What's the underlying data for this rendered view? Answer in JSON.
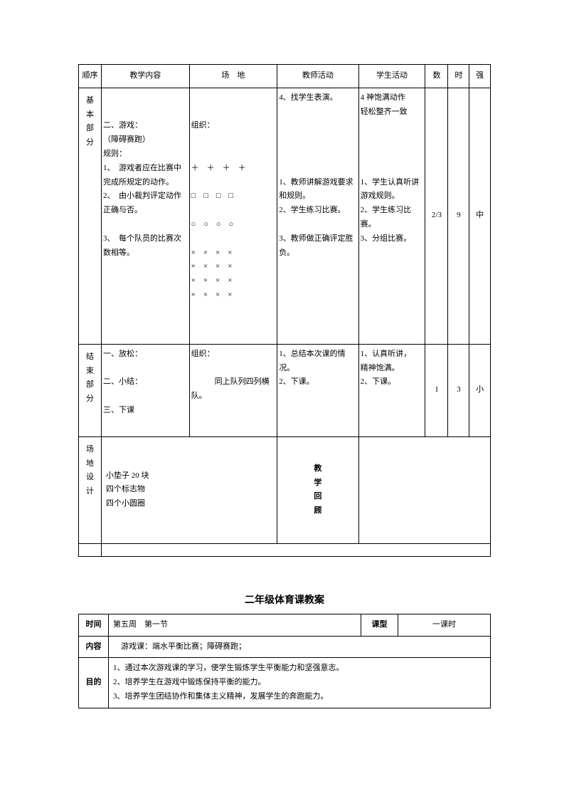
{
  "table1": {
    "headers": {
      "seq": "顺序",
      "content": "教学内容",
      "field": "场　地",
      "teacher": "教师活动",
      "student": "学生活动",
      "num": "数",
      "time": "时",
      "intensity": "强"
    },
    "row1": {
      "seq": "基\n本\n部\n分",
      "content": "\n\n二、游戏：\n（障碍赛跑）\n规则：\n1、　游戏者应在比赛中完成所规定的动作。\n2、　由小裁判评定动作正确与否。\n\n3、　每个队员的比赛次数相等。",
      "field": "\n\n组织：\n\n\n＋　＋　＋　＋\n\n□　□　□　□\n\n○　○　○　○\n\n×　×　×　×\n×　×　×　×\n×　×　×　×\n×　×　×　×",
      "teacher": "4、找学生表演。\n\n\n\n\n\n1、教师讲解游戏要求和规则。\n2、学生练习比赛。\n\n3、教师做正确评定胜负。",
      "student": "4 神饱满动作\n轻松整齐一致\n\n\n\n\n1、学生认真听讲游戏规则。\n2、学生练习比赛。\n3、分组比赛。",
      "num": "2/3",
      "time": "9",
      "intensity": "中"
    },
    "row2": {
      "seq": "结\n束\n部\n分",
      "content": "一、放松：\n\n二、小结：\n\n三、下课",
      "field": "组织：\n\n　　　同上队列四列横队。",
      "teacher": "1、总结本次课的情况。\n2、下课。",
      "student": "1、认真听讲，\n精神饱满。\n2、下课。",
      "num": "1",
      "time": "3",
      "intensity": "小"
    },
    "row3": {
      "design_label": "场\n地\n设\n计",
      "design_content": "小垫子 20 块\n四个标志物\n四个小圆圈",
      "review_label": "教\n学\n回\n顾",
      "review_content": ""
    }
  },
  "lessonTitle": "二年级体育课教案",
  "table2": {
    "r1": {
      "time_label": "时间",
      "time_value": "第五周　第一节",
      "type_label": "课型",
      "type_value": "一课时"
    },
    "r2": {
      "content_label": "内容",
      "content_value": "　游戏课：端水平衡比赛；障碍赛跑；"
    },
    "r3": {
      "purpose_label": "目的",
      "purpose_value": "1、通过本次游戏课的学习，使学生锻炼学生平衡能力和坚强意志。\n2、培养学生在游戏中锻炼保持平衡的能力。\n3、培养学生团结协作和集体主义精神，发展学生的奔跑能力。"
    }
  }
}
